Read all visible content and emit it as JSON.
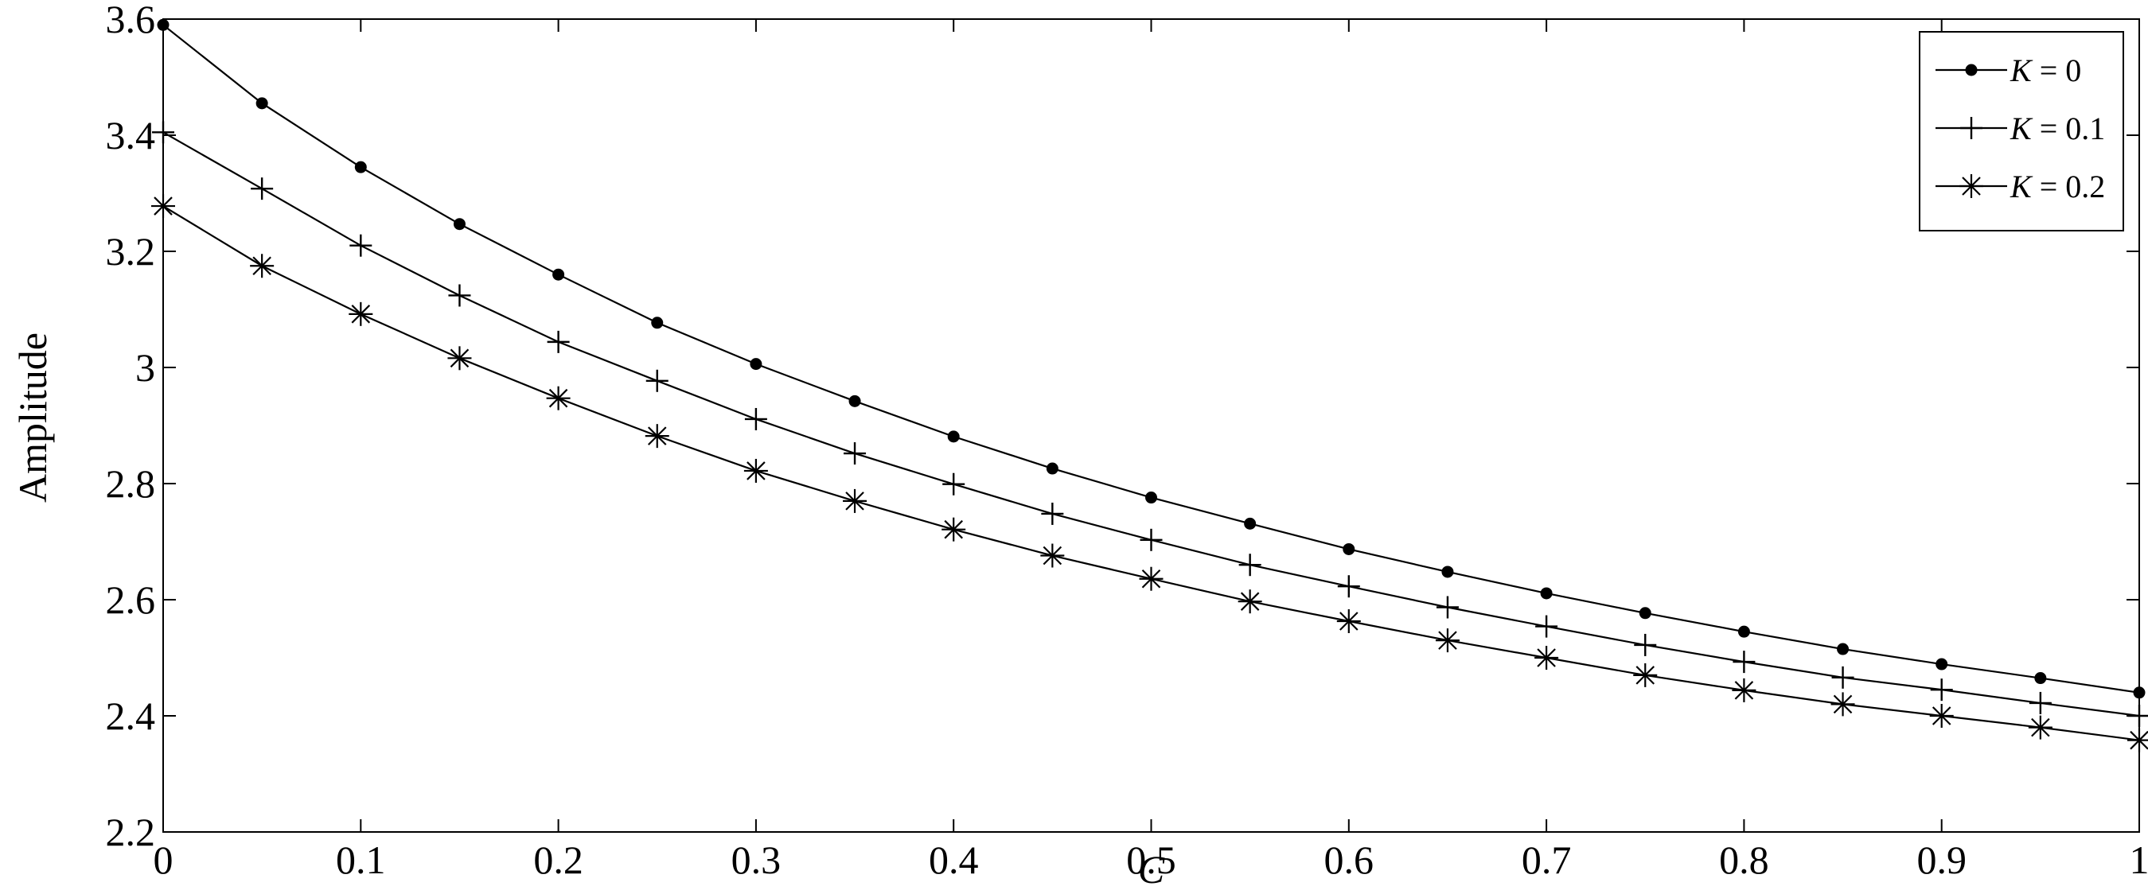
{
  "chart_data": {
    "type": "line",
    "title": "",
    "xlabel": "C",
    "ylabel": "Amplitude",
    "xlim": [
      0,
      1
    ],
    "ylim": [
      2.2,
      3.6
    ],
    "x_ticks": [
      "0",
      "0.1",
      "0.2",
      "0.3",
      "0.4",
      "0.5",
      "0.6",
      "0.7",
      "0.8",
      "0.9",
      "1"
    ],
    "y_ticks": [
      "2.2",
      "2.4",
      "2.6",
      "2.8",
      "3",
      "3.2",
      "3.4",
      "3.6"
    ],
    "grid": false,
    "legend_position": "top-right",
    "x": [
      0,
      0.05,
      0.1,
      0.15,
      0.2,
      0.25,
      0.3,
      0.35,
      0.4,
      0.45,
      0.5,
      0.55,
      0.6,
      0.65,
      0.7,
      0.75,
      0.8,
      0.85,
      0.9,
      0.95,
      1.0
    ],
    "series": [
      {
        "name_var": "K",
        "name_rest": " = 0",
        "marker": "dot",
        "values": [
          3.59,
          3.455,
          3.345,
          3.247,
          3.16,
          3.077,
          3.006,
          2.942,
          2.881,
          2.826,
          2.776,
          2.731,
          2.687,
          2.648,
          2.611,
          2.577,
          2.545,
          2.515,
          2.489,
          2.465,
          2.44
        ]
      },
      {
        "name_var": "K",
        "name_rest": " = 0.1",
        "marker": "plus",
        "values": [
          3.405,
          3.308,
          3.21,
          3.124,
          3.044,
          2.977,
          2.911,
          2.852,
          2.799,
          2.748,
          2.703,
          2.66,
          2.623,
          2.587,
          2.554,
          2.522,
          2.493,
          2.466,
          2.445,
          2.422,
          2.4
        ]
      },
      {
        "name_var": "K",
        "name_rest": " = 0.2",
        "marker": "asterisk",
        "values": [
          3.278,
          3.175,
          3.092,
          3.016,
          2.947,
          2.882,
          2.822,
          2.77,
          2.721,
          2.676,
          2.636,
          2.597,
          2.563,
          2.53,
          2.5,
          2.47,
          2.444,
          2.42,
          2.4,
          2.38,
          2.358
        ]
      }
    ]
  }
}
